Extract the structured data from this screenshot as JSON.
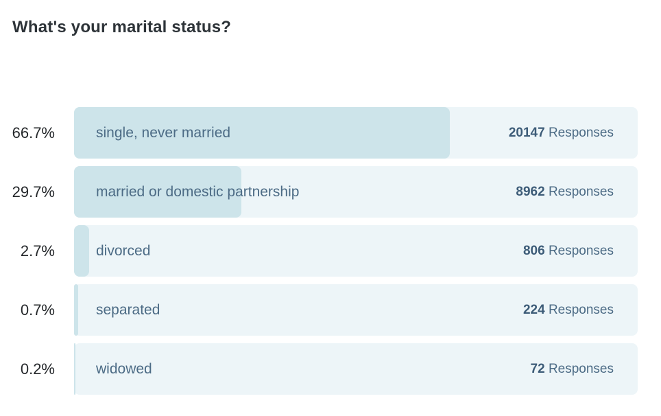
{
  "title": "What's your marital status?",
  "responses_word": "Responses",
  "colors": {
    "bar_fill": "#cde4ea",
    "bar_track": "#edf5f8",
    "label_text": "#4c6b85",
    "count_text": "#3d5c78",
    "percent_text": "#24272a",
    "title_text": "#2d3338"
  },
  "chart_data": {
    "type": "bar",
    "orientation": "horizontal",
    "title": "What's your marital status?",
    "categories": [
      "single, never married",
      "married or domestic partnership",
      "divorced",
      "separated",
      "widowed"
    ],
    "values": [
      20147,
      8962,
      806,
      224,
      72
    ],
    "percentages": [
      66.7,
      29.7,
      2.7,
      0.7,
      0.2
    ],
    "xlim": [
      0,
      100
    ],
    "grid": false,
    "legend": false,
    "rows": [
      {
        "percent_label": "66.7%",
        "label": "single, never married",
        "count": "20147",
        "percent": 66.7
      },
      {
        "percent_label": "29.7%",
        "label": "married or domestic partnership",
        "count": "8962",
        "percent": 29.7
      },
      {
        "percent_label": "2.7%",
        "label": "divorced",
        "count": "806",
        "percent": 2.7
      },
      {
        "percent_label": "0.7%",
        "label": "separated",
        "count": "224",
        "percent": 0.7
      },
      {
        "percent_label": "0.2%",
        "label": "widowed",
        "count": "72",
        "percent": 0.2
      }
    ]
  }
}
